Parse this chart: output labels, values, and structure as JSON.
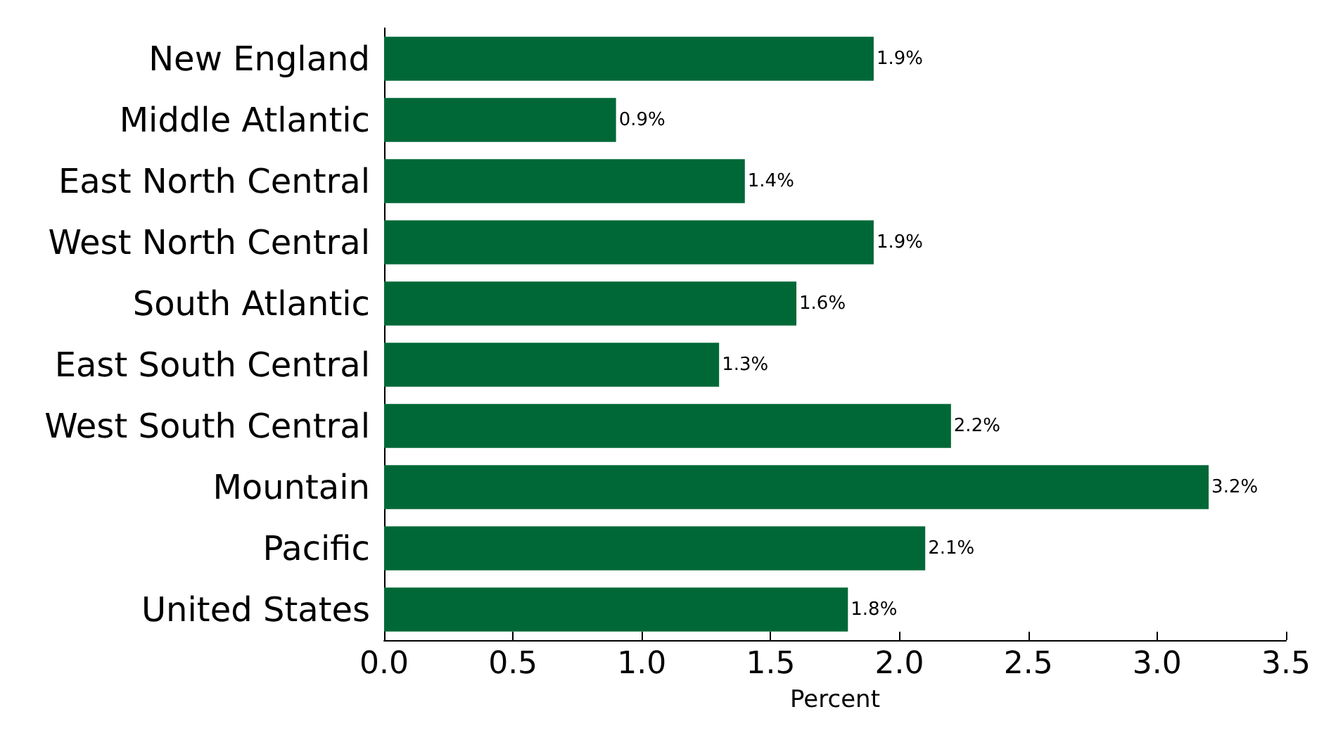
{
  "chart_data": {
    "type": "bar",
    "orientation": "horizontal",
    "xlabel": "Percent",
    "categories": [
      "New England",
      "Middle Atlantic",
      "East North Central",
      "West North Central",
      "South Atlantic",
      "East South Central",
      "West South Central",
      "Mountain",
      "Pacific",
      "United States"
    ],
    "values": [
      1.9,
      0.9,
      1.4,
      1.9,
      1.6,
      1.3,
      2.2,
      3.2,
      2.1,
      1.8
    ],
    "value_labels": [
      "1.9%",
      "0.9%",
      "1.4%",
      "1.9%",
      "1.6%",
      "1.3%",
      "2.2%",
      "3.2%",
      "2.1%",
      "1.8%"
    ],
    "color": "#006837",
    "xlim": [
      0,
      3.5
    ],
    "xticks": [
      {
        "value": 0,
        "label": "0.0"
      },
      {
        "value": 0.5,
        "label": "0.5"
      },
      {
        "value": 1,
        "label": "1.0"
      },
      {
        "value": 1.5,
        "label": "1.5"
      },
      {
        "value": 2,
        "label": "2.0"
      },
      {
        "value": 2.5,
        "label": "2.5"
      },
      {
        "value": 3,
        "label": "3.0"
      },
      {
        "value": 3.5,
        "label": "3.5"
      }
    ],
    "grid": false
  }
}
